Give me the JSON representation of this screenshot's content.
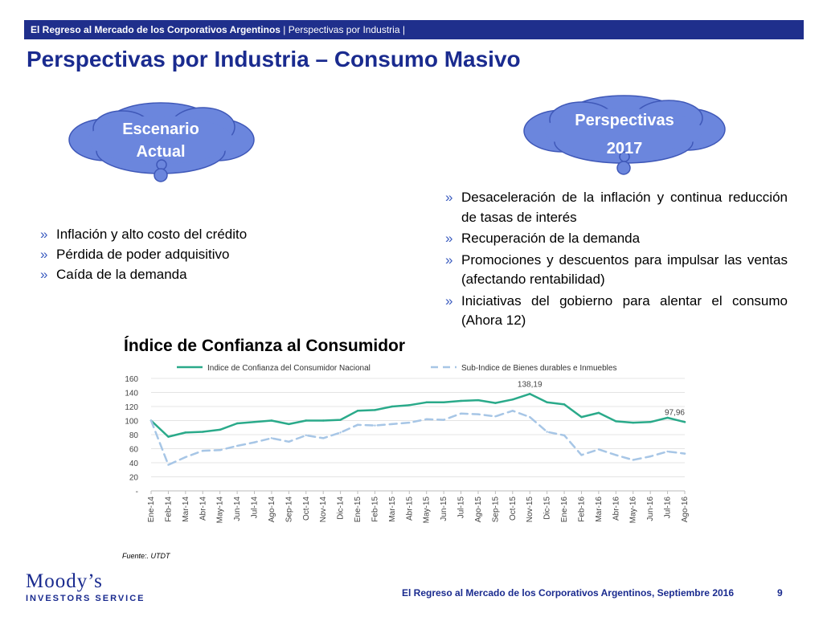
{
  "header": {
    "bar_bold": "El Regreso al Mercado de los Corporativos Argentinos",
    "bar_rest": " | Perspectivas por Industria |",
    "title": "Perspectivas por Industria – Consumo Masivo"
  },
  "left_cloud": {
    "line1": "Escenario",
    "line2": "Actual"
  },
  "right_cloud": {
    "line1": "Perspectivas",
    "line2": "2017"
  },
  "bullet_marker": "»",
  "left_bullets": [
    "Inflación y alto costo del crédito",
    "Pérdida de poder adquisitivo",
    "Caída de la demanda"
  ],
  "right_bullets": [
    "Desaceleración de la inflación y continua reducción de tasas de interés",
    "Recuperación de la demanda",
    "Promociones y descuentos para impulsar las ventas (afectando rentabilidad)",
    "Iniciativas del gobierno para alentar el consumo (Ahora 12)"
  ],
  "chart_title": "Índice de Confianza al Consumidor",
  "source": "Fuente:. UTDT",
  "footer": {
    "text": "El Regreso al Mercado de los Corporativos Argentinos, Septiembre 2016",
    "page": "9"
  },
  "logo": {
    "line1": "Moody’s",
    "line2": "INVESTORS SERVICE"
  },
  "colors": {
    "brand": "#1f2f8c",
    "cloud_fill": "#6b86dd",
    "series1": "#2aaa8a",
    "series2": "#a7c6e6"
  },
  "chart_data": {
    "type": "line",
    "title": "",
    "xlabel": "",
    "ylabel": "",
    "ylim": [
      0,
      160
    ],
    "y_ticks": [
      "-",
      "20",
      "40",
      "60",
      "80",
      "100",
      "120",
      "140",
      "160"
    ],
    "grid": true,
    "legend_position": "top",
    "x": [
      "Ene-14",
      "Feb-14",
      "Mar-14",
      "Abr-14",
      "May-14",
      "Jun-14",
      "Jul-14",
      "Ago-14",
      "Sep-14",
      "Oct-14",
      "Nov-14",
      "Dic-14",
      "Ene-15",
      "Feb-15",
      "Mar-15",
      "Abr-15",
      "May-15",
      "Jun-15",
      "Jul-15",
      "Ago-15",
      "Sep-15",
      "Oct-15",
      "Nov-15",
      "Dic-15",
      "Ene-16",
      "Feb-16",
      "Mar-16",
      "Abr-16",
      "May-16",
      "Jun-16",
      "Jul-16",
      "Ago-16"
    ],
    "series": [
      {
        "name": "Indice de Confianza del Consumidor Nacional",
        "style": "solid",
        "values": [
          100,
          77,
          83,
          84,
          87,
          96,
          98,
          100,
          95,
          100,
          100,
          101,
          114,
          115,
          120,
          122,
          126,
          126,
          128,
          129,
          125,
          130,
          138,
          126,
          123,
          105,
          111,
          99,
          97,
          98,
          104,
          98
        ]
      },
      {
        "name": "Sub-Indice de Bienes durables e Inmuebles",
        "style": "dashed",
        "values": [
          100,
          37,
          48,
          57,
          58,
          64,
          69,
          75,
          70,
          79,
          75,
          83,
          94,
          93,
          95,
          97,
          102,
          101,
          110,
          109,
          106,
          114,
          105,
          84,
          79,
          51,
          59,
          51,
          44,
          49,
          56,
          53
        ]
      }
    ],
    "annotations": [
      {
        "text": "138,19",
        "x": "Nov-15",
        "series": 0
      },
      {
        "text": "97,96",
        "x": "Ago-16",
        "series": 0
      }
    ]
  }
}
